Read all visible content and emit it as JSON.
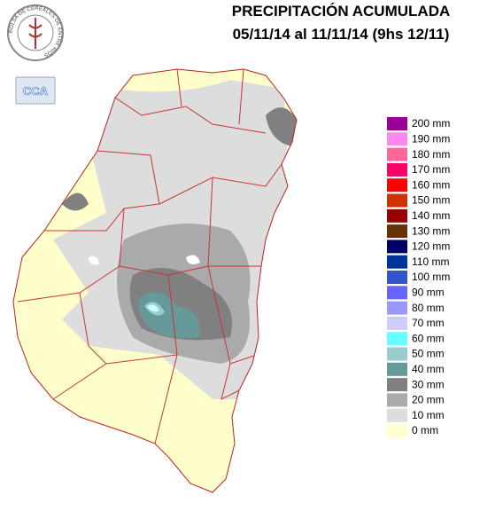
{
  "header": {
    "title": "PRECIPITACIÓN ACUMULADA",
    "subtitle": "05/11/14 al 11/11/14 (9hs 12/11)"
  },
  "logos": {
    "bolsa": "BOLSA DE CEREALES DE ENTRE RIOS",
    "cca": "CCA"
  },
  "legend": {
    "items": [
      {
        "label": "200 mm",
        "color": "#990099"
      },
      {
        "label": "190 mm",
        "color": "#ff88ee"
      },
      {
        "label": "180 mm",
        "color": "#ff6699"
      },
      {
        "label": "170 mm",
        "color": "#ff0066"
      },
      {
        "label": "160 mm",
        "color": "#ff0000"
      },
      {
        "label": "150 mm",
        "color": "#cc3300"
      },
      {
        "label": "140 mm",
        "color": "#990000"
      },
      {
        "label": "130 mm",
        "color": "#663300"
      },
      {
        "label": "120 mm",
        "color": "#000066"
      },
      {
        "label": "110 mm",
        "color": "#003399"
      },
      {
        "label": "100 mm",
        "color": "#3355cc"
      },
      {
        "label": "90 mm",
        "color": "#6666ff"
      },
      {
        "label": "80 mm",
        "color": "#9999ff"
      },
      {
        "label": "70 mm",
        "color": "#ccccff"
      },
      {
        "label": "60 mm",
        "color": "#66ffff"
      },
      {
        "label": "50 mm",
        "color": "#99cccc"
      },
      {
        "label": "40 mm",
        "color": "#669999"
      },
      {
        "label": "30 mm",
        "color": "#808080"
      },
      {
        "label": "20 mm",
        "color": "#aaaaaa"
      },
      {
        "label": "10 mm",
        "color": "#dddddd"
      },
      {
        "label": "0 mm",
        "color": "#ffffcc"
      }
    ]
  }
}
